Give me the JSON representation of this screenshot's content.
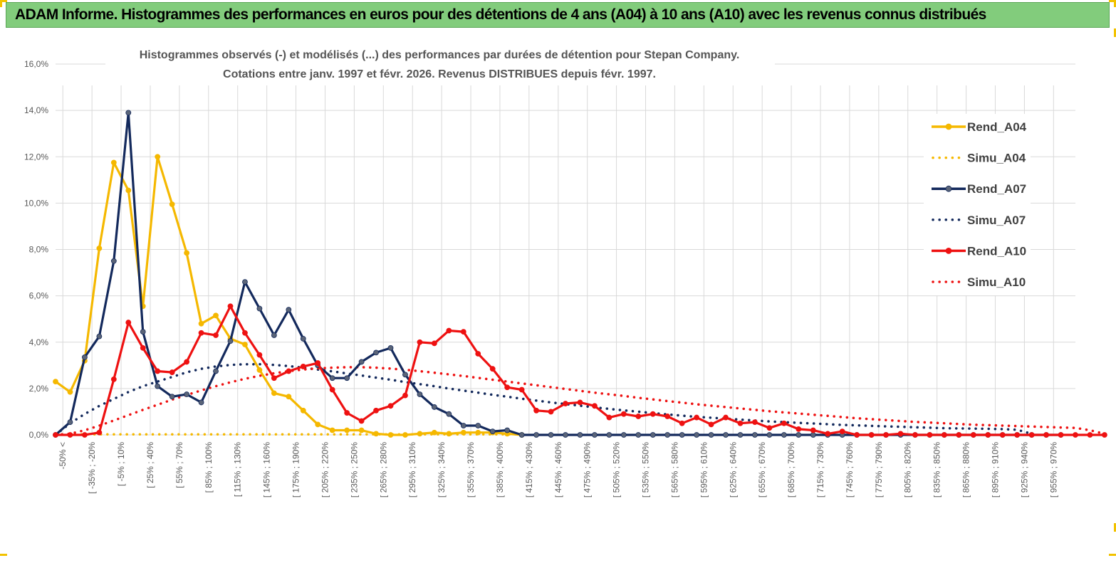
{
  "header": {
    "title": "ADAM Informe. Histogrammes des performances en euros pour des détentions de 4 ans (A04) à 10 ans (A10) avec les revenus connus distribués"
  },
  "colors": {
    "banner_bg": "#82cc7c",
    "a04": "#f5b800",
    "a07": "#13295c",
    "a07_marker": "#5a6478",
    "a10": "#ee1111",
    "grid": "#d9d9d9",
    "axis_text": "#595959"
  },
  "chart_data": {
    "type": "line",
    "title": [
      "Histogrammes observés (-) et modélisés (...) des performances par durées de détention pour Stepan Company.",
      "Cotations entre janv. 1997 et févr.  2026. Revenus DISTRIBUES depuis févr. 1997."
    ],
    "xlabel": "",
    "ylabel": "",
    "ylim": [
      0,
      16
    ],
    "y_ticks": [
      "0,0%",
      "2,0%",
      "4,0%",
      "6,0%",
      "8,0%",
      "10,0%",
      "12,0%",
      "14,0%",
      "16,0%"
    ],
    "x_labels": [
      "-50% <",
      "[ -35% ; -20%",
      "[ -5% ; 10%",
      "[ 25% ; 40%",
      "[ 55% ; 70%",
      "[ 85% ; 100%",
      "[ 115% ; 130%",
      "[ 145% ; 160%",
      "[ 175% ; 190%",
      "[ 205% ; 220%",
      "[ 235% ; 250%",
      "[ 265% ; 280%",
      "[ 295% ; 310%",
      "[ 325% ; 340%",
      "[ 355% ; 370%",
      "[ 385% ; 400%",
      "[ 415% ; 430%",
      "[ 445% ; 460%",
      "[ 475% ; 490%",
      "[ 505% ; 520%",
      "[ 535% ; 550%",
      "[ 565% ; 580%",
      "[ 595% ; 610%",
      "[ 625% ; 640%",
      "[ 655% ; 670%",
      "[ 685% ; 700%",
      "[ 715% ; 730%",
      "[ 745% ; 760%",
      "[ 775% ; 790%",
      "[ 805% ; 820%",
      "[ 835% ; 850%",
      "[ 865% ; 880%",
      "[ 895% ; 910%",
      "[ 925% ; 940%",
      "[ 955% ; 970%"
    ],
    "series": [
      {
        "name": "Rend_A04",
        "style": "solid",
        "color": "#f5b800",
        "values": [
          2.3,
          1.85,
          3.2,
          8.05,
          11.75,
          10.55,
          5.55,
          12.0,
          9.95,
          7.85,
          4.8,
          5.15,
          4.15,
          3.9,
          2.8,
          1.8,
          1.65,
          1.05,
          0.45,
          0.2,
          0.2,
          0.2,
          0.05,
          0.0,
          0.0,
          0.05,
          0.1,
          0.05,
          0.1,
          0.1,
          0.1,
          0.05,
          0.0
        ]
      },
      {
        "name": "Simu_A04",
        "style": "dotted",
        "color": "#f5b800",
        "values": [
          0.02,
          0.02,
          0.02,
          0.02,
          0.02,
          0.02,
          0.02,
          0.02,
          0.02,
          0.02,
          0.02,
          0.02,
          0.02,
          0.02,
          0.02,
          0.02,
          0.02,
          0.02,
          0.02,
          0.02,
          0.02,
          0.02,
          0.02,
          0.02,
          0.02,
          0.02,
          0.02,
          0.02,
          0.02,
          0.02,
          0.02,
          0.02,
          0.02
        ]
      },
      {
        "name": "Rend_A07",
        "style": "solid",
        "color": "#13295c",
        "values": [
          0.0,
          0.55,
          3.35,
          4.25,
          7.5,
          13.9,
          4.45,
          2.1,
          1.65,
          1.75,
          1.4,
          2.75,
          4.05,
          6.6,
          5.45,
          4.3,
          5.4,
          4.15,
          3.0,
          2.45,
          2.45,
          3.15,
          3.55,
          3.75,
          2.6,
          1.75,
          1.2,
          0.9,
          0.4,
          0.4,
          0.15,
          0.2,
          0.0,
          0.0,
          0.0,
          0.0,
          0.0,
          0.0,
          0.0,
          0.0,
          0.0,
          0.0,
          0.0,
          0.0,
          0.0,
          0.0,
          0.0,
          0.0,
          0.0,
          0.0,
          0.0,
          0.0,
          0.0,
          0.0,
          0.0,
          0.0,
          0.0,
          0.0,
          0.0,
          0.0,
          0.0,
          0.0,
          0.0,
          0.0,
          0.0,
          0.0,
          0.0,
          0.0,
          0.0,
          0.0
        ]
      },
      {
        "name": "Simu_A07",
        "style": "dotted",
        "color": "#13295c",
        "values": [
          0.0,
          0.5,
          0.9,
          1.25,
          1.55,
          1.85,
          2.1,
          2.3,
          2.5,
          2.7,
          2.85,
          2.95,
          3.02,
          3.05,
          3.05,
          3.02,
          2.97,
          2.9,
          2.82,
          2.74,
          2.65,
          2.56,
          2.47,
          2.38,
          2.28,
          2.19,
          2.1,
          2.0,
          1.91,
          1.82,
          1.73,
          1.65,
          1.56,
          1.48,
          1.4,
          1.33,
          1.26,
          1.19,
          1.12,
          1.06,
          1.0,
          0.94,
          0.88,
          0.83,
          0.78,
          0.74,
          0.7,
          0.66,
          0.62,
          0.58,
          0.55,
          0.52,
          0.49,
          0.46,
          0.43,
          0.41,
          0.39,
          0.37,
          0.35,
          0.33,
          0.31,
          0.29,
          0.28,
          0.27,
          0.26,
          0.25,
          0.22,
          0.05
        ]
      },
      {
        "name": "Rend_A10",
        "style": "solid",
        "color": "#ee1111",
        "values": [
          0.0,
          0.0,
          0.0,
          0.1,
          2.4,
          4.85,
          3.75,
          2.75,
          2.7,
          3.15,
          4.4,
          4.3,
          5.55,
          4.4,
          3.45,
          2.45,
          2.75,
          2.95,
          3.1,
          1.95,
          0.95,
          0.6,
          1.05,
          1.25,
          1.7,
          4.0,
          3.95,
          4.5,
          4.45,
          3.5,
          2.85,
          2.05,
          1.95,
          1.05,
          1.0,
          1.35,
          1.4,
          1.25,
          0.75,
          0.9,
          0.8,
          0.9,
          0.8,
          0.5,
          0.75,
          0.45,
          0.75,
          0.5,
          0.55,
          0.3,
          0.5,
          0.25,
          0.2,
          0.05,
          0.15,
          0.0,
          0.0,
          0.0,
          0.05,
          0.0,
          0.0,
          0.0,
          0.0,
          0.0,
          0.0,
          0.0,
          0.0,
          0.0,
          0.0,
          0.0,
          0.0,
          0.0,
          0.0
        ]
      },
      {
        "name": "Simu_A10",
        "style": "dotted",
        "color": "#ee1111",
        "values": [
          0.0,
          0.05,
          0.2,
          0.4,
          0.62,
          0.85,
          1.08,
          1.3,
          1.52,
          1.72,
          1.92,
          2.1,
          2.27,
          2.42,
          2.55,
          2.66,
          2.75,
          2.82,
          2.87,
          2.9,
          2.92,
          2.92,
          2.9,
          2.86,
          2.81,
          2.75,
          2.68,
          2.61,
          2.54,
          2.46,
          2.38,
          2.3,
          2.22,
          2.14,
          2.06,
          1.98,
          1.9,
          1.82,
          1.75,
          1.68,
          1.6,
          1.53,
          1.46,
          1.39,
          1.32,
          1.26,
          1.2,
          1.14,
          1.08,
          1.02,
          0.97,
          0.92,
          0.87,
          0.82,
          0.77,
          0.72,
          0.68,
          0.64,
          0.6,
          0.56,
          0.53,
          0.5,
          0.47,
          0.44,
          0.42,
          0.4,
          0.38,
          0.36,
          0.34,
          0.32,
          0.3,
          0.2,
          0.05
        ]
      }
    ],
    "legend_position": "right"
  }
}
